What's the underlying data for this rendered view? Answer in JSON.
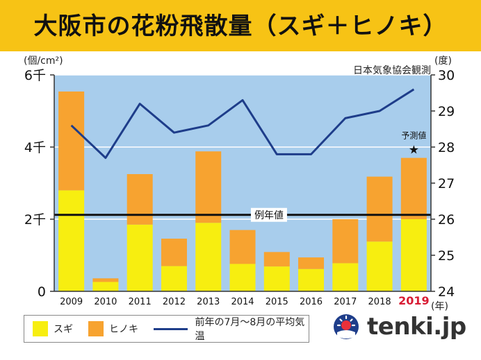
{
  "title": "大阪市の花粉飛散量（スギ＋ヒノキ）",
  "unit_left": "(個/cm²)",
  "unit_right": "(度)",
  "source": "日本気象協会観測",
  "year_unit": "(年)",
  "logo_text": "tenki.jp",
  "colors": {
    "sugi": "#f7ee10",
    "hinoki": "#f7a330",
    "temperature": "#1e3d8a",
    "plot_bg": "#a8cdec",
    "highlight_year": "#d81b33",
    "title_bar": "#f7c315"
  },
  "legend": {
    "sugi": "スギ",
    "hinoki": "ヒノキ",
    "temperature": "前年の7月～8月の平均気温"
  },
  "chart_data": {
    "type": "bar",
    "stacked": true,
    "categories": [
      "2009",
      "2010",
      "2011",
      "2012",
      "2013",
      "2014",
      "2015",
      "2016",
      "2017",
      "2018",
      "2019"
    ],
    "highlight_category": "2019",
    "y_left": {
      "ticks": [
        "0",
        "2千",
        "4千",
        "6千"
      ],
      "tick_values": [
        0,
        2000,
        4000,
        6000
      ],
      "ylim": [
        0,
        6000
      ]
    },
    "y_right": {
      "ticks": [
        "24",
        "25",
        "26",
        "27",
        "28",
        "29",
        "30"
      ],
      "tick_values": [
        24,
        25,
        26,
        27,
        28,
        29,
        30
      ],
      "ylim": [
        24,
        30
      ]
    },
    "series": [
      {
        "name": "スギ",
        "axis": "left",
        "values": [
          2800,
          260,
          1850,
          700,
          1900,
          760,
          690,
          620,
          780,
          1380,
          2000
        ]
      },
      {
        "name": "ヒノキ",
        "axis": "left",
        "values": [
          2740,
          100,
          1400,
          760,
          1980,
          940,
          400,
          320,
          1220,
          1800,
          1700
        ]
      },
      {
        "name": "前年の7月～8月の平均気温",
        "type": "line",
        "axis": "right",
        "values": [
          28.6,
          27.7,
          29.2,
          28.4,
          28.6,
          29.3,
          27.8,
          27.8,
          28.8,
          29.0,
          29.6
        ]
      }
    ],
    "reference_line": {
      "label": "例年値",
      "value": 2120
    },
    "annotation": {
      "label": "予測値",
      "category": "2019",
      "marker": "★"
    }
  }
}
